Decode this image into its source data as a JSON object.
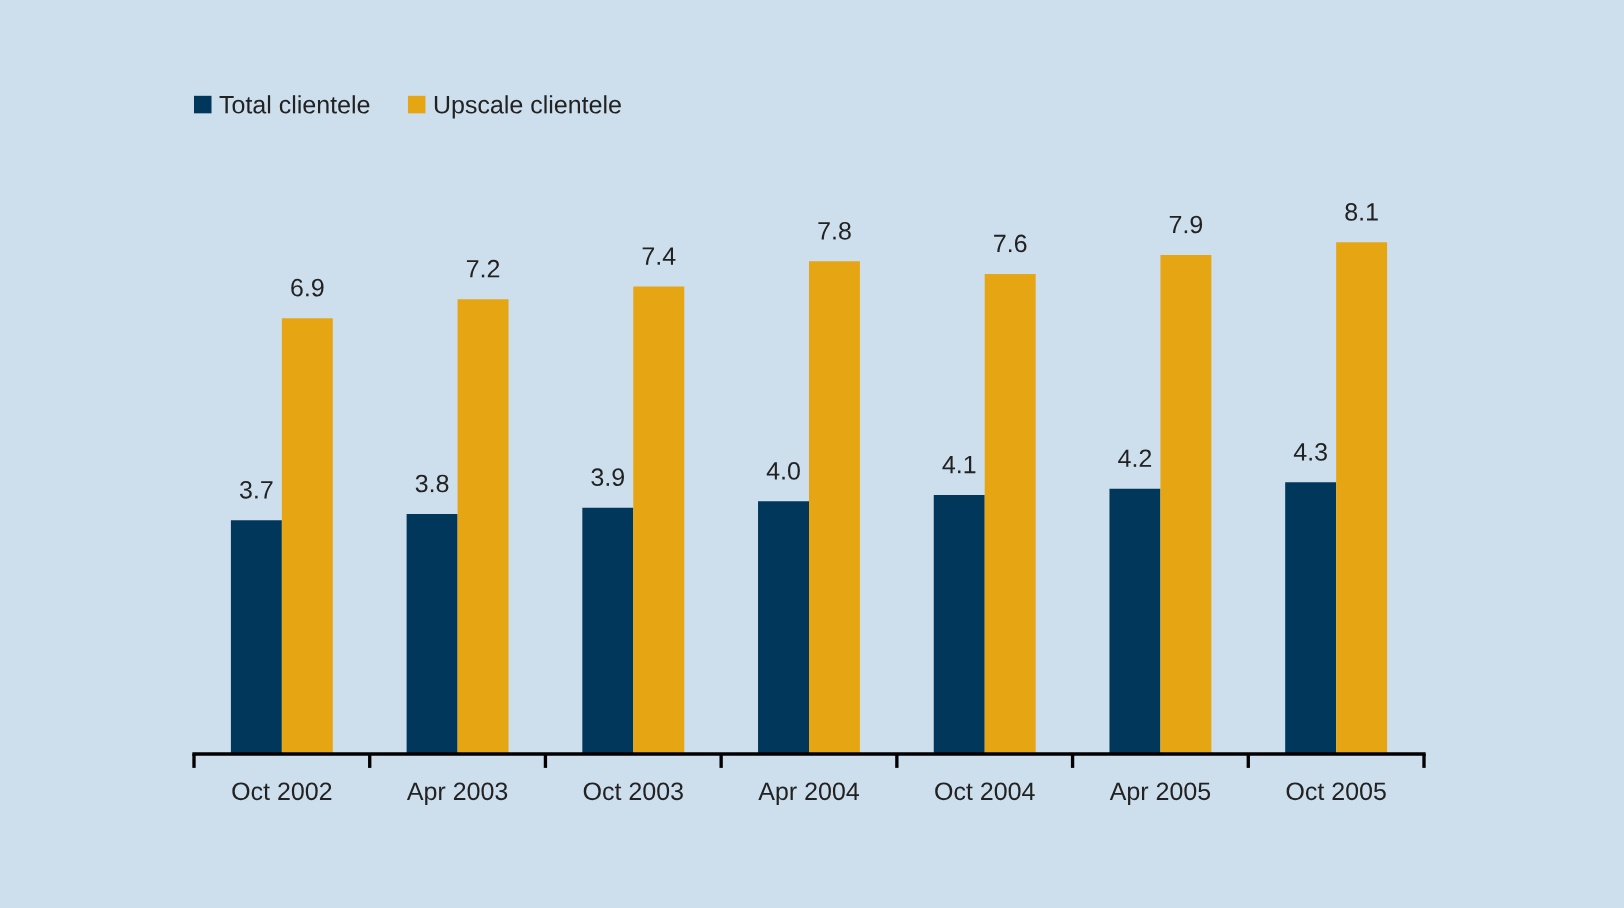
{
  "chart_data": {
    "type": "bar",
    "categories": [
      "Oct 2002",
      "Apr 2003",
      "Oct 2003",
      "Apr 2004",
      "Oct 2004",
      "Apr 2005",
      "Oct 2005"
    ],
    "series": [
      {
        "name": "Total clientele",
        "color": "#00375a",
        "values": [
          3.7,
          3.8,
          3.9,
          4.0,
          4.1,
          4.2,
          4.3
        ],
        "value_labels": [
          "3.7",
          "3.8",
          "3.9",
          "4.0",
          "4.1",
          "4.2",
          "4.3"
        ]
      },
      {
        "name": "Upscale clientele",
        "color": "#e6a614",
        "values": [
          6.9,
          7.2,
          7.4,
          7.8,
          7.6,
          7.9,
          8.1
        ],
        "value_labels": [
          "6.9",
          "7.2",
          "7.4",
          "7.8",
          "7.6",
          "7.9",
          "8.1"
        ]
      }
    ],
    "tick_labels": "x",
    "legend": "top left",
    "grid": false
  }
}
